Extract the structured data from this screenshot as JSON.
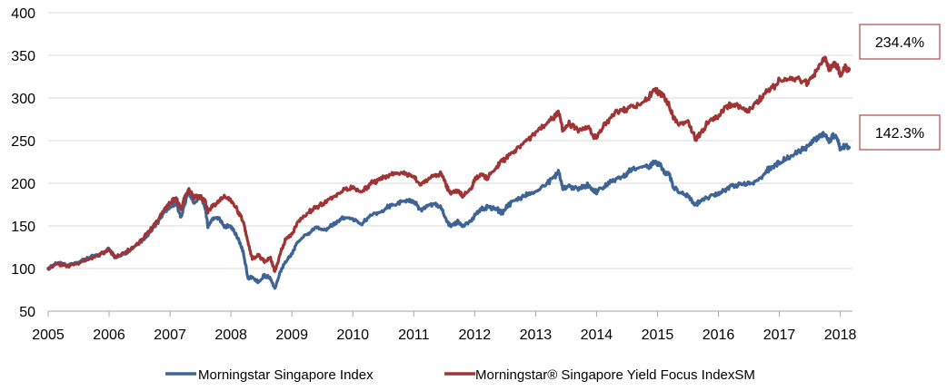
{
  "chart_data": {
    "type": "line",
    "title": "",
    "xlabel": "",
    "ylabel": "",
    "ylim": [
      50,
      400
    ],
    "yticks": [
      50,
      100,
      150,
      200,
      250,
      300,
      350,
      400
    ],
    "xlim": [
      2005.0,
      2018.2
    ],
    "xticks": [
      2005,
      2006,
      2007,
      2008,
      2009,
      2010,
      2011,
      2012,
      2013,
      2014,
      2015,
      2016,
      2017,
      2018
    ],
    "grid": "horizontal",
    "legend_position": "bottom",
    "series": [
      {
        "name": "Morningstar Singapore Index",
        "color": "#3e6496",
        "end_label": "142.3%",
        "points": [
          [
            2005.0,
            100
          ],
          [
            2005.15,
            107
          ],
          [
            2005.3,
            104
          ],
          [
            2005.5,
            108
          ],
          [
            2005.7,
            113
          ],
          [
            2005.9,
            118
          ],
          [
            2006.0,
            123
          ],
          [
            2006.1,
            113
          ],
          [
            2006.25,
            117
          ],
          [
            2006.4,
            124
          ],
          [
            2006.55,
            133
          ],
          [
            2006.7,
            144
          ],
          [
            2006.85,
            160
          ],
          [
            2007.0,
            172
          ],
          [
            2007.1,
            177
          ],
          [
            2007.18,
            160
          ],
          [
            2007.25,
            178
          ],
          [
            2007.3,
            189
          ],
          [
            2007.4,
            177
          ],
          [
            2007.5,
            184
          ],
          [
            2007.58,
            170
          ],
          [
            2007.62,
            150
          ],
          [
            2007.7,
            158
          ],
          [
            2007.8,
            160
          ],
          [
            2007.9,
            148
          ],
          [
            2008.0,
            150
          ],
          [
            2008.1,
            138
          ],
          [
            2008.2,
            120
          ],
          [
            2008.28,
            88
          ],
          [
            2008.35,
            90
          ],
          [
            2008.45,
            84
          ],
          [
            2008.55,
            92
          ],
          [
            2008.65,
            88
          ],
          [
            2008.72,
            76
          ],
          [
            2008.8,
            95
          ],
          [
            2008.9,
            108
          ],
          [
            2009.0,
            117
          ],
          [
            2009.1,
            132
          ],
          [
            2009.25,
            140
          ],
          [
            2009.4,
            148
          ],
          [
            2009.55,
            145
          ],
          [
            2009.7,
            153
          ],
          [
            2009.85,
            160
          ],
          [
            2010.0,
            158
          ],
          [
            2010.15,
            152
          ],
          [
            2010.3,
            163
          ],
          [
            2010.45,
            166
          ],
          [
            2010.6,
            173
          ],
          [
            2010.75,
            177
          ],
          [
            2010.9,
            180
          ],
          [
            2011.0,
            180
          ],
          [
            2011.1,
            168
          ],
          [
            2011.2,
            172
          ],
          [
            2011.32,
            176
          ],
          [
            2011.45,
            172
          ],
          [
            2011.52,
            158
          ],
          [
            2011.6,
            150
          ],
          [
            2011.72,
            155
          ],
          [
            2011.8,
            149
          ],
          [
            2011.95,
            156
          ],
          [
            2012.0,
            162
          ],
          [
            2012.1,
            170
          ],
          [
            2012.2,
            172
          ],
          [
            2012.35,
            170
          ],
          [
            2012.45,
            165
          ],
          [
            2012.55,
            175
          ],
          [
            2012.7,
            180
          ],
          [
            2012.85,
            186
          ],
          [
            2013.0,
            190
          ],
          [
            2013.15,
            197
          ],
          [
            2013.3,
            207
          ],
          [
            2013.38,
            213
          ],
          [
            2013.45,
            193
          ],
          [
            2013.55,
            197
          ],
          [
            2013.7,
            193
          ],
          [
            2013.85,
            198
          ],
          [
            2013.95,
            191
          ],
          [
            2014.0,
            190
          ],
          [
            2014.15,
            198
          ],
          [
            2014.3,
            205
          ],
          [
            2014.45,
            208
          ],
          [
            2014.55,
            215
          ],
          [
            2014.7,
            218
          ],
          [
            2014.85,
            220
          ],
          [
            2014.95,
            224
          ],
          [
            2015.05,
            222
          ],
          [
            2015.12,
            212
          ],
          [
            2015.2,
            210
          ],
          [
            2015.25,
            196
          ],
          [
            2015.35,
            190
          ],
          [
            2015.5,
            186
          ],
          [
            2015.62,
            175
          ],
          [
            2015.7,
            178
          ],
          [
            2015.85,
            185
          ],
          [
            2016.0,
            188
          ],
          [
            2016.1,
            192
          ],
          [
            2016.2,
            196
          ],
          [
            2016.35,
            198
          ],
          [
            2016.5,
            199
          ],
          [
            2016.65,
            204
          ],
          [
            2016.8,
            215
          ],
          [
            2016.9,
            220
          ],
          [
            2017.0,
            225
          ],
          [
            2017.15,
            230
          ],
          [
            2017.3,
            236
          ],
          [
            2017.45,
            243
          ],
          [
            2017.55,
            250
          ],
          [
            2017.65,
            254
          ],
          [
            2017.75,
            258
          ],
          [
            2017.82,
            248
          ],
          [
            2017.88,
            256
          ],
          [
            2017.95,
            253
          ],
          [
            2018.0,
            240
          ],
          [
            2018.08,
            244
          ],
          [
            2018.15,
            242
          ]
        ]
      },
      {
        "name": "Morningstar® Singapore Yield Focus IndexSM",
        "color": "#a03434",
        "end_label": "234.4%",
        "points": [
          [
            2005.0,
            100
          ],
          [
            2005.15,
            105
          ],
          [
            2005.3,
            103
          ],
          [
            2005.5,
            107
          ],
          [
            2005.7,
            112
          ],
          [
            2005.9,
            118
          ],
          [
            2006.0,
            122
          ],
          [
            2006.1,
            113
          ],
          [
            2006.25,
            118
          ],
          [
            2006.4,
            125
          ],
          [
            2006.55,
            135
          ],
          [
            2006.7,
            147
          ],
          [
            2006.85,
            163
          ],
          [
            2007.0,
            178
          ],
          [
            2007.1,
            183
          ],
          [
            2007.18,
            170
          ],
          [
            2007.25,
            185
          ],
          [
            2007.3,
            192
          ],
          [
            2007.4,
            183
          ],
          [
            2007.5,
            185
          ],
          [
            2007.58,
            178
          ],
          [
            2007.62,
            167
          ],
          [
            2007.7,
            174
          ],
          [
            2007.8,
            178
          ],
          [
            2007.9,
            185
          ],
          [
            2008.0,
            180
          ],
          [
            2008.1,
            170
          ],
          [
            2008.2,
            155
          ],
          [
            2008.28,
            130
          ],
          [
            2008.35,
            112
          ],
          [
            2008.45,
            115
          ],
          [
            2008.55,
            108
          ],
          [
            2008.65,
            112
          ],
          [
            2008.72,
            97
          ],
          [
            2008.8,
            115
          ],
          [
            2008.9,
            135
          ],
          [
            2009.0,
            140
          ],
          [
            2009.1,
            155
          ],
          [
            2009.25,
            165
          ],
          [
            2009.4,
            172
          ],
          [
            2009.55,
            178
          ],
          [
            2009.7,
            185
          ],
          [
            2009.85,
            192
          ],
          [
            2010.0,
            195
          ],
          [
            2010.15,
            190
          ],
          [
            2010.3,
            200
          ],
          [
            2010.45,
            205
          ],
          [
            2010.6,
            210
          ],
          [
            2010.75,
            212
          ],
          [
            2010.9,
            210
          ],
          [
            2011.0,
            208
          ],
          [
            2011.1,
            198
          ],
          [
            2011.2,
            203
          ],
          [
            2011.32,
            210
          ],
          [
            2011.45,
            212
          ],
          [
            2011.52,
            200
          ],
          [
            2011.6,
            188
          ],
          [
            2011.72,
            192
          ],
          [
            2011.8,
            185
          ],
          [
            2011.95,
            195
          ],
          [
            2012.0,
            205
          ],
          [
            2012.1,
            210
          ],
          [
            2012.2,
            206
          ],
          [
            2012.35,
            218
          ],
          [
            2012.45,
            226
          ],
          [
            2012.55,
            232
          ],
          [
            2012.7,
            240
          ],
          [
            2012.85,
            250
          ],
          [
            2013.0,
            260
          ],
          [
            2013.15,
            268
          ],
          [
            2013.3,
            278
          ],
          [
            2013.38,
            283
          ],
          [
            2013.45,
            262
          ],
          [
            2013.55,
            270
          ],
          [
            2013.7,
            262
          ],
          [
            2013.85,
            266
          ],
          [
            2013.95,
            255
          ],
          [
            2014.0,
            255
          ],
          [
            2014.15,
            270
          ],
          [
            2014.3,
            282
          ],
          [
            2014.45,
            286
          ],
          [
            2014.55,
            288
          ],
          [
            2014.7,
            292
          ],
          [
            2014.85,
            300
          ],
          [
            2014.95,
            310
          ],
          [
            2015.05,
            305
          ],
          [
            2015.12,
            300
          ],
          [
            2015.2,
            290
          ],
          [
            2015.25,
            278
          ],
          [
            2015.35,
            270
          ],
          [
            2015.5,
            272
          ],
          [
            2015.62,
            252
          ],
          [
            2015.7,
            258
          ],
          [
            2015.85,
            273
          ],
          [
            2016.0,
            278
          ],
          [
            2016.1,
            288
          ],
          [
            2016.2,
            292
          ],
          [
            2016.35,
            290
          ],
          [
            2016.5,
            285
          ],
          [
            2016.65,
            296
          ],
          [
            2016.8,
            308
          ],
          [
            2016.9,
            313
          ],
          [
            2017.0,
            320
          ],
          [
            2017.15,
            322
          ],
          [
            2017.3,
            322
          ],
          [
            2017.45,
            317
          ],
          [
            2017.55,
            325
          ],
          [
            2017.65,
            338
          ],
          [
            2017.75,
            347
          ],
          [
            2017.82,
            332
          ],
          [
            2017.88,
            340
          ],
          [
            2017.95,
            338
          ],
          [
            2018.0,
            328
          ],
          [
            2018.08,
            336
          ],
          [
            2018.15,
            334
          ]
        ]
      }
    ]
  }
}
